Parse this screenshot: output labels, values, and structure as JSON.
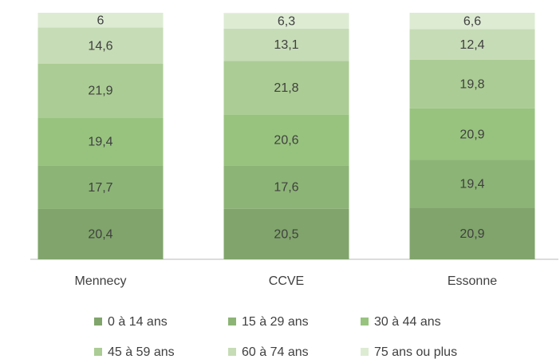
{
  "chart_data": {
    "type": "stacked_bar",
    "categories": [
      "Mennecy",
      "CCVE",
      "Essonne"
    ],
    "ylim": [
      0,
      100
    ],
    "legend": "bottom",
    "series": [
      {
        "name": "0 à 14 ans",
        "color": "#80a46b",
        "values": [
          20.4,
          20.5,
          20.9
        ],
        "value_labels": [
          "20,4",
          "20,5",
          "20,9"
        ]
      },
      {
        "name": "15 à 29 ans",
        "color": "#8cb476",
        "values": [
          17.7,
          17.6,
          19.4
        ],
        "value_labels": [
          "17,7",
          "17,6",
          "19,4"
        ]
      },
      {
        "name": "30 à 44 ans",
        "color": "#98c37f",
        "values": [
          19.4,
          20.6,
          20.9
        ],
        "value_labels": [
          "19,4",
          "20,6",
          "20,9"
        ]
      },
      {
        "name": "45 à 59 ans",
        "color": "#abcc94",
        "values": [
          21.9,
          21.8,
          19.8
        ],
        "value_labels": [
          "21,9",
          "21,8",
          "19,8"
        ]
      },
      {
        "name": "60 à 74 ans",
        "color": "#c6dcb6",
        "values": [
          14.6,
          13.1,
          12.4
        ],
        "value_labels": [
          "14,6",
          "13,1",
          "12,4"
        ]
      },
      {
        "name": "75 ans ou plus",
        "color": "#ddebd3",
        "values": [
          6,
          6.3,
          6.6
        ],
        "value_labels": [
          "6",
          "6,3",
          "6,6"
        ]
      }
    ]
  }
}
